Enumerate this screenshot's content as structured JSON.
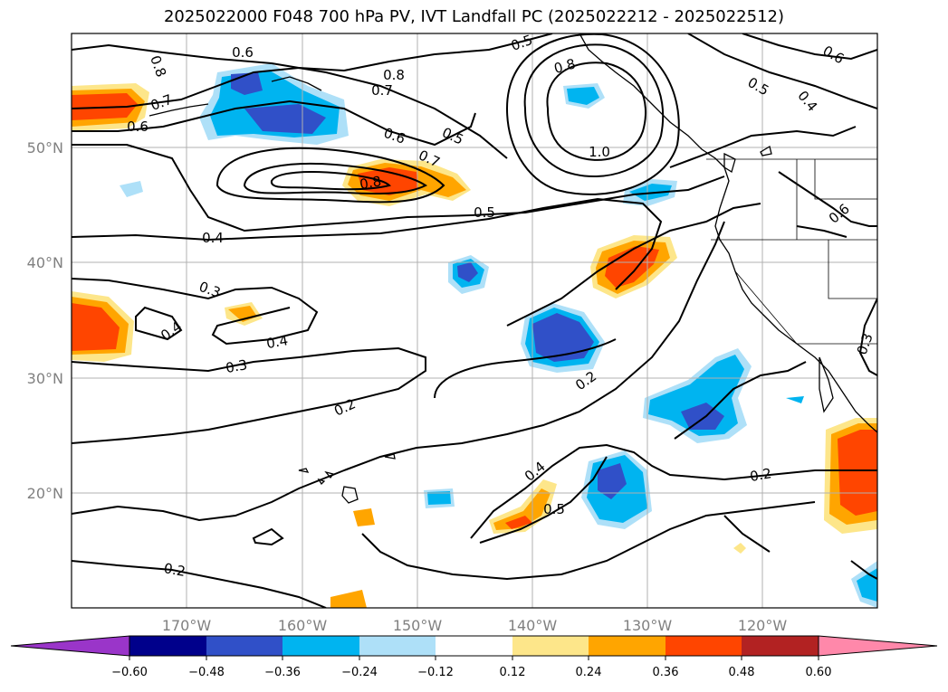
{
  "title": "2025022000 F048 700 hPa PV, IVT Landfall PC (2025022212 - 2025022512)",
  "map": {
    "lon_labels": [
      "170°W",
      "160°W",
      "150°W",
      "140°W",
      "130°W",
      "120°W"
    ],
    "lat_labels": [
      "50°N",
      "40°N",
      "30°N",
      "20°N"
    ]
  },
  "colorbar": {
    "tick_labels": [
      "−0.60",
      "−0.48",
      "−0.36",
      "−0.24",
      "−0.12",
      "0.12",
      "0.24",
      "0.36",
      "0.48",
      "0.60"
    ],
    "colors": [
      "#9a35c9",
      "#00008b",
      "#3050c8",
      "#00b4f0",
      "#aee0f8",
      "#ffffff",
      "#fde68a",
      "#ffa500",
      "#ff4500",
      "#b22222",
      "#ff88aa"
    ]
  },
  "contour_labels": [
    "0.6",
    "0.8",
    "0.7",
    "0.6",
    "0.8",
    "0.7",
    "0.5",
    "0.8",
    "1.0",
    "0.6",
    "0.5",
    "0.7",
    "0.8",
    "0.5",
    "0.4",
    "0.5",
    "0.6",
    "0.4",
    "0.3",
    "0.4",
    "0.4",
    "0.3",
    "0.2",
    "0.2",
    "0.4",
    "0.5",
    "0.2",
    "0.2",
    "0.3",
    "0.6"
  ]
}
